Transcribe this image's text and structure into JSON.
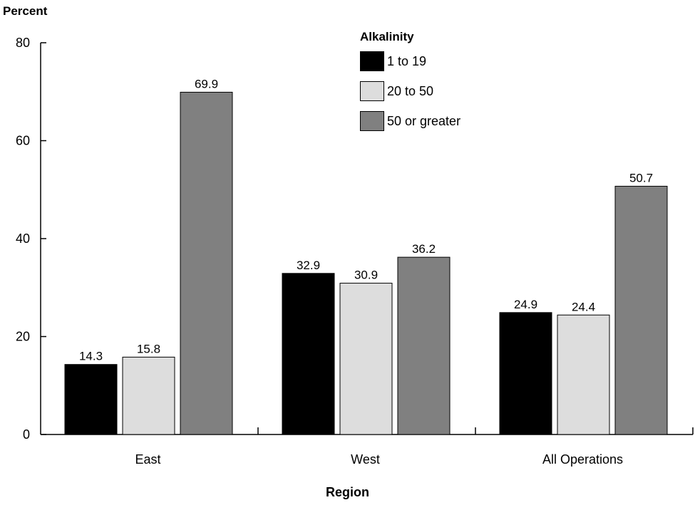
{
  "chart_data": {
    "type": "bar",
    "title": "",
    "xlabel": "Region",
    "ylabel": "Percent",
    "ylim": [
      0,
      80
    ],
    "yticks": [
      0,
      20,
      40,
      60,
      80
    ],
    "categories": [
      "East",
      "West",
      "All Operations"
    ],
    "legend_title": "Alkalinity",
    "legend_position": "top-center",
    "grid": false,
    "series": [
      {
        "name": "1 to 19",
        "color": "#000000",
        "values": [
          14.3,
          32.9,
          24.9
        ]
      },
      {
        "name": "20 to 50",
        "color": "#dddddd",
        "values": [
          15.8,
          30.9,
          24.4
        ]
      },
      {
        "name": "50 or greater",
        "color": "#808080",
        "values": [
          69.9,
          36.2,
          50.7
        ]
      }
    ]
  }
}
